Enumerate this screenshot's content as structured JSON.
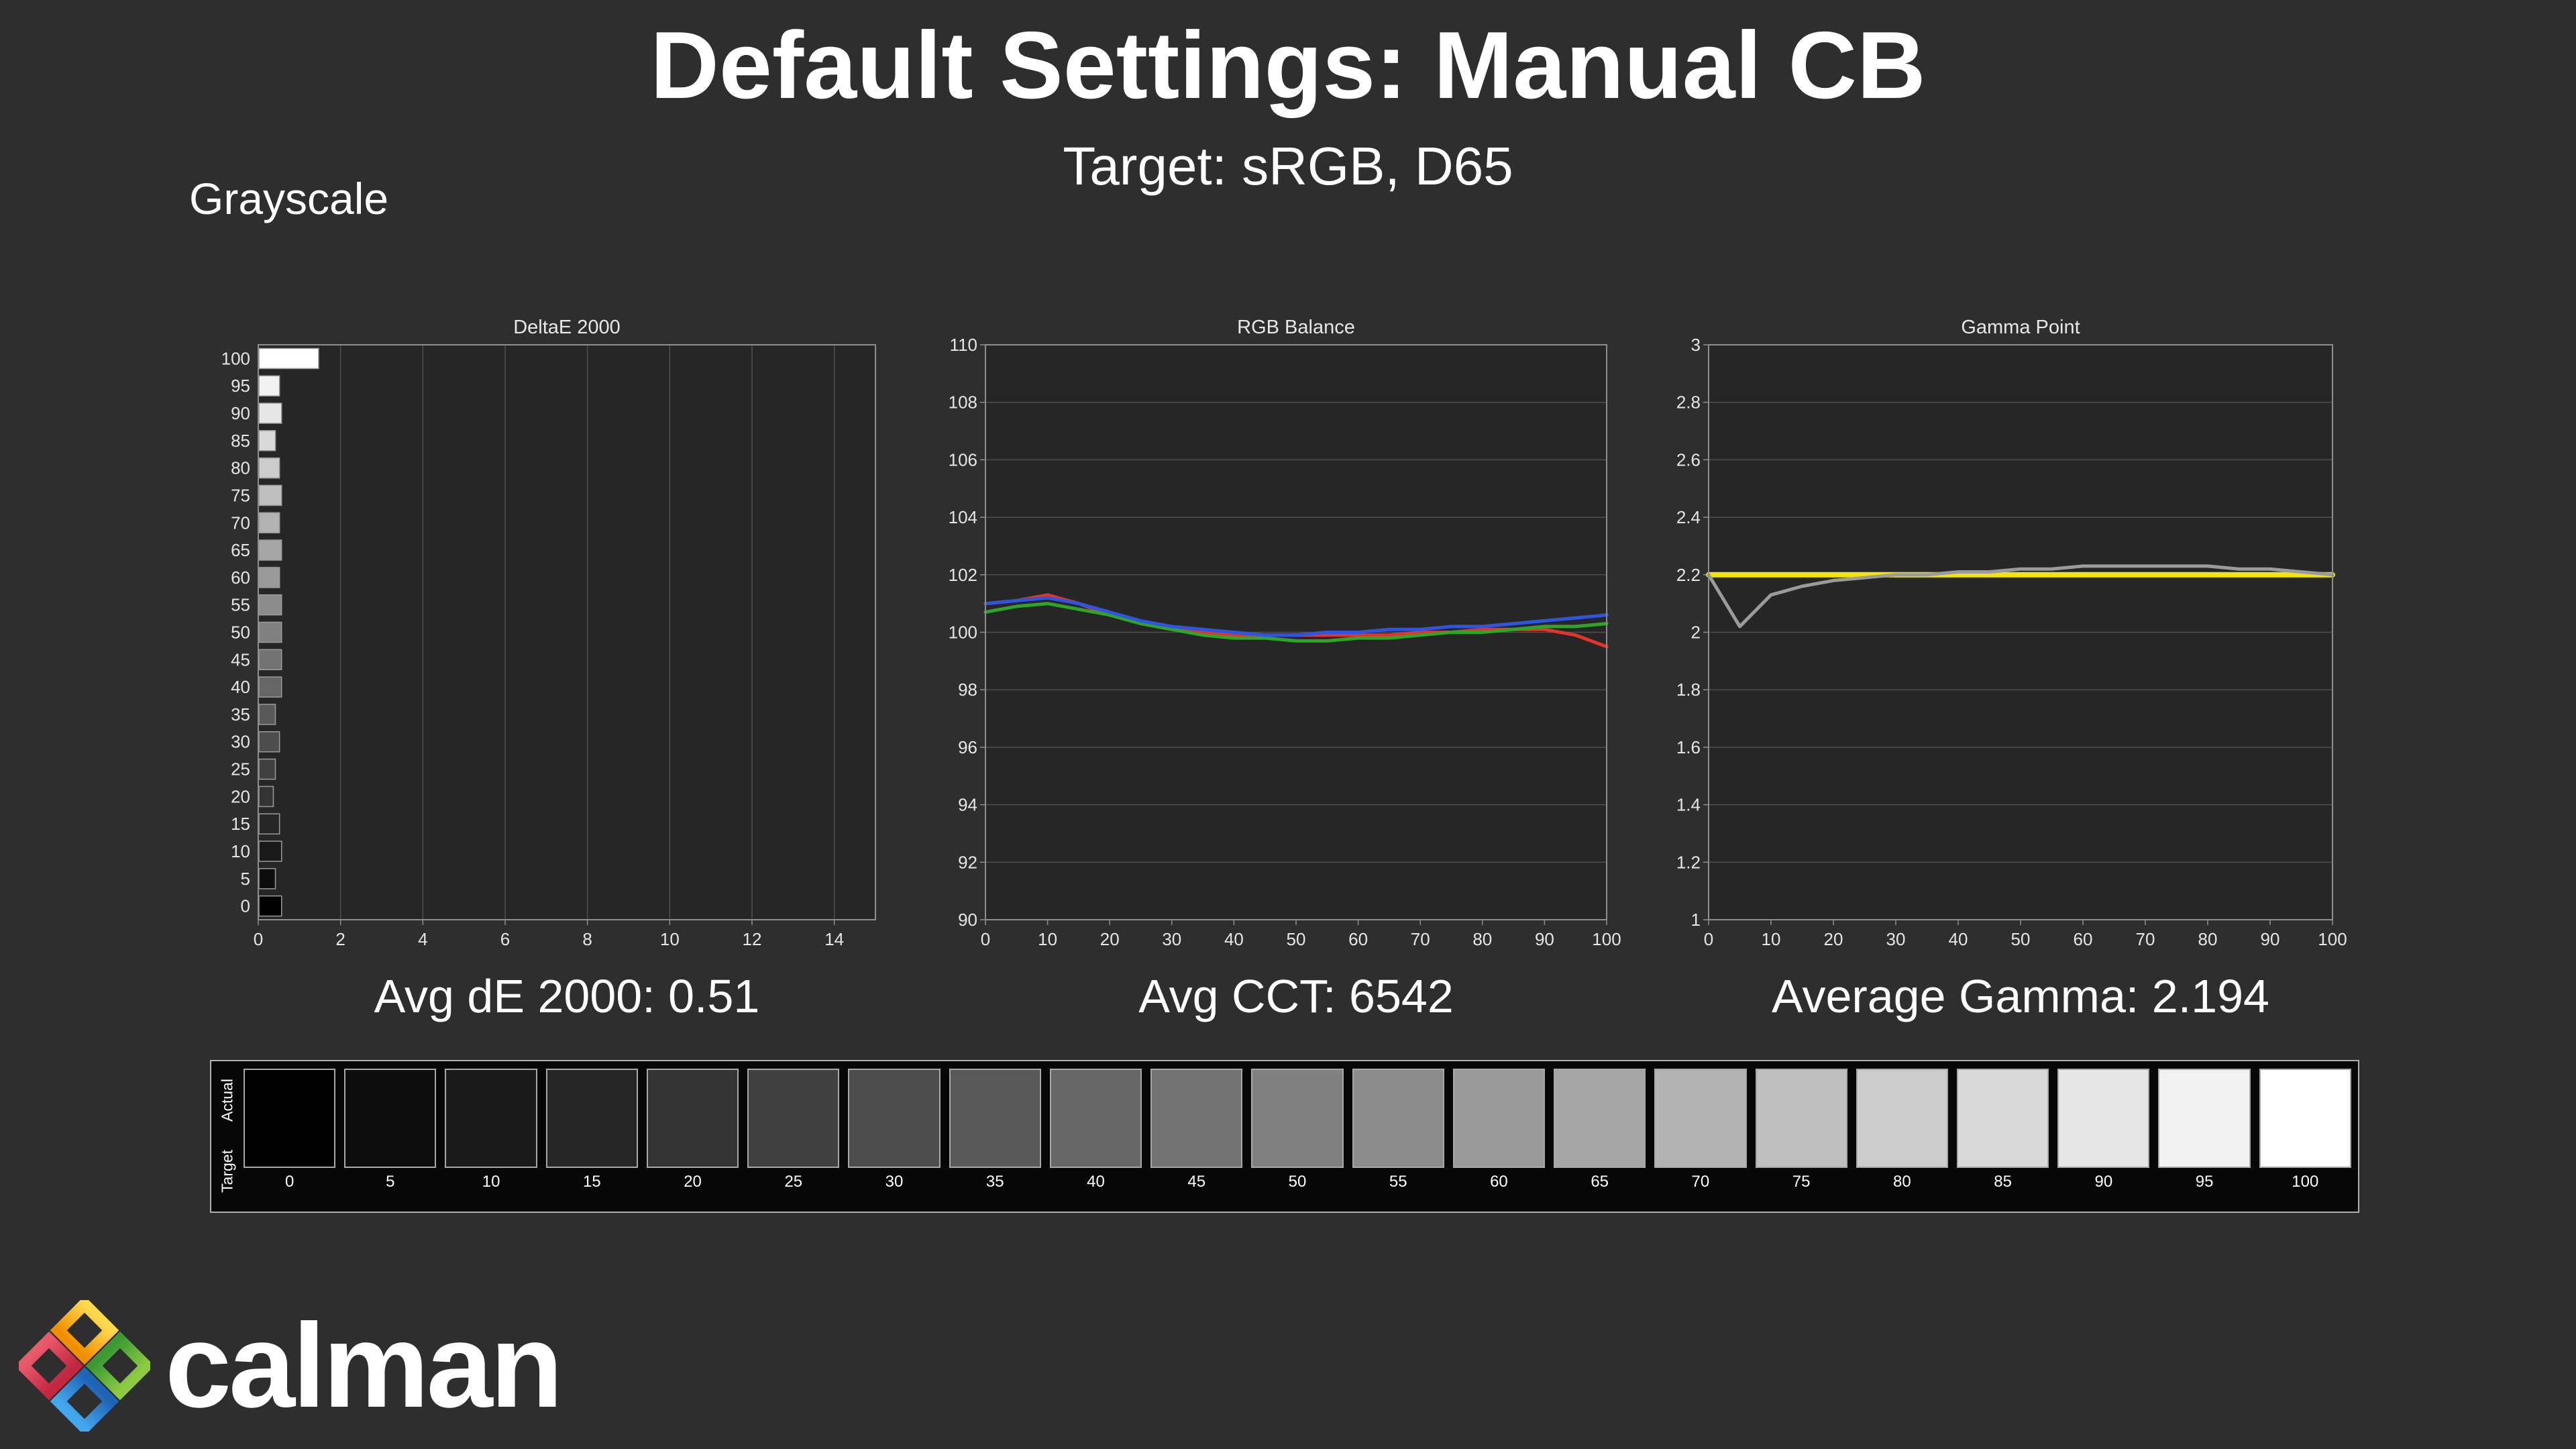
{
  "header": {
    "title": "Default Settings: Manual CB",
    "subtitle": "Target: sRGB, D65",
    "section_label": "Grayscale"
  },
  "stats": {
    "avg_de": "Avg dE 2000: 0.51",
    "avg_cct": "Avg CCT: 6542",
    "avg_gamma": "Average Gamma: 2.194"
  },
  "ramp": {
    "row_labels": [
      "Actual",
      "Target"
    ],
    "levels": [
      0,
      5,
      10,
      15,
      20,
      25,
      30,
      35,
      40,
      45,
      50,
      55,
      60,
      65,
      70,
      75,
      80,
      85,
      90,
      95,
      100
    ]
  },
  "logo": {
    "text": "calman",
    "colors": {
      "top": "#f2a71b",
      "left": "#d8404d",
      "right": "#5cb23c",
      "bottom": "#2f86d4"
    }
  },
  "colors": {
    "background": "#2e2e2e",
    "chart_bg": "#262626",
    "grid": "#4f4f4f",
    "plot_border": "#8e8e8e",
    "axis_text": "#e6e6e6"
  },
  "chart_data": [
    {
      "type": "bar",
      "title": "DeltaE 2000",
      "orientation": "horizontal",
      "categories": [
        100,
        95,
        90,
        85,
        80,
        75,
        70,
        65,
        60,
        55,
        50,
        45,
        40,
        35,
        30,
        25,
        20,
        15,
        10,
        5,
        0
      ],
      "values": [
        1.45,
        0.5,
        0.55,
        0.4,
        0.5,
        0.55,
        0.5,
        0.55,
        0.5,
        0.55,
        0.55,
        0.55,
        0.55,
        0.4,
        0.5,
        0.4,
        0.35,
        0.5,
        0.55,
        0.4,
        0.55
      ],
      "xlim": [
        0,
        15
      ],
      "xticks": [
        0,
        2,
        4,
        6,
        8,
        10,
        12,
        14
      ],
      "bar_color_rule": "grayscale-of-category",
      "grid": "vertical"
    },
    {
      "type": "line",
      "title": "RGB Balance",
      "x": [
        0,
        5,
        10,
        15,
        20,
        25,
        30,
        35,
        40,
        45,
        50,
        55,
        60,
        65,
        70,
        75,
        80,
        85,
        90,
        95,
        100
      ],
      "series": [
        {
          "name": "Red",
          "color": "#e0352b",
          "width": 5,
          "values": [
            101.0,
            101.1,
            101.3,
            101.0,
            100.6,
            100.3,
            100.1,
            100.0,
            99.9,
            99.9,
            99.9,
            99.9,
            99.9,
            99.9,
            100.0,
            100.0,
            100.1,
            100.1,
            100.1,
            99.9,
            99.5
          ]
        },
        {
          "name": "Green",
          "color": "#2fa32a",
          "width": 5,
          "values": [
            100.7,
            100.9,
            101.0,
            100.8,
            100.6,
            100.3,
            100.1,
            99.9,
            99.8,
            99.8,
            99.7,
            99.7,
            99.8,
            99.8,
            99.9,
            100.0,
            100.0,
            100.1,
            100.2,
            100.2,
            100.3
          ]
        },
        {
          "name": "Blue",
          "color": "#2f54dd",
          "width": 5,
          "values": [
            101.0,
            101.1,
            101.2,
            101.0,
            100.7,
            100.4,
            100.2,
            100.1,
            100.0,
            99.9,
            99.9,
            100.0,
            100.0,
            100.1,
            100.1,
            100.2,
            100.2,
            100.3,
            100.4,
            100.5,
            100.6
          ]
        }
      ],
      "ylim": [
        90,
        110
      ],
      "yticks": [
        110,
        108,
        106,
        104,
        102,
        100,
        98,
        96,
        94,
        92,
        90
      ],
      "xlim": [
        0,
        100
      ],
      "xticks": [
        0,
        10,
        20,
        30,
        40,
        50,
        60,
        70,
        80,
        90,
        100
      ],
      "grid": "horizontal"
    },
    {
      "type": "line",
      "title": "Gamma Point",
      "x": [
        0,
        5,
        10,
        15,
        20,
        25,
        30,
        35,
        40,
        45,
        50,
        55,
        60,
        65,
        70,
        75,
        80,
        85,
        90,
        95,
        100
      ],
      "series": [
        {
          "name": "Target",
          "color": "#f2e410",
          "width": 8,
          "values": [
            2.2,
            2.2,
            2.2,
            2.2,
            2.2,
            2.2,
            2.2,
            2.2,
            2.2,
            2.2,
            2.2,
            2.2,
            2.2,
            2.2,
            2.2,
            2.2,
            2.2,
            2.2,
            2.2,
            2.2,
            2.2
          ]
        },
        {
          "name": "Measured",
          "color": "#9b9b9b",
          "width": 5,
          "values": [
            2.2,
            2.02,
            2.13,
            2.16,
            2.18,
            2.19,
            2.2,
            2.2,
            2.21,
            2.21,
            2.22,
            2.22,
            2.23,
            2.23,
            2.23,
            2.23,
            2.23,
            2.22,
            2.22,
            2.21,
            2.2
          ]
        }
      ],
      "ylim": [
        1,
        3
      ],
      "yticks": [
        3,
        2.8,
        2.6,
        2.4,
        2.2,
        2,
        1.8,
        1.6,
        1.4,
        1.2,
        1
      ],
      "xlim": [
        0,
        100
      ],
      "xticks": [
        0,
        10,
        20,
        30,
        40,
        50,
        60,
        70,
        80,
        90,
        100
      ],
      "grid": "horizontal"
    }
  ]
}
